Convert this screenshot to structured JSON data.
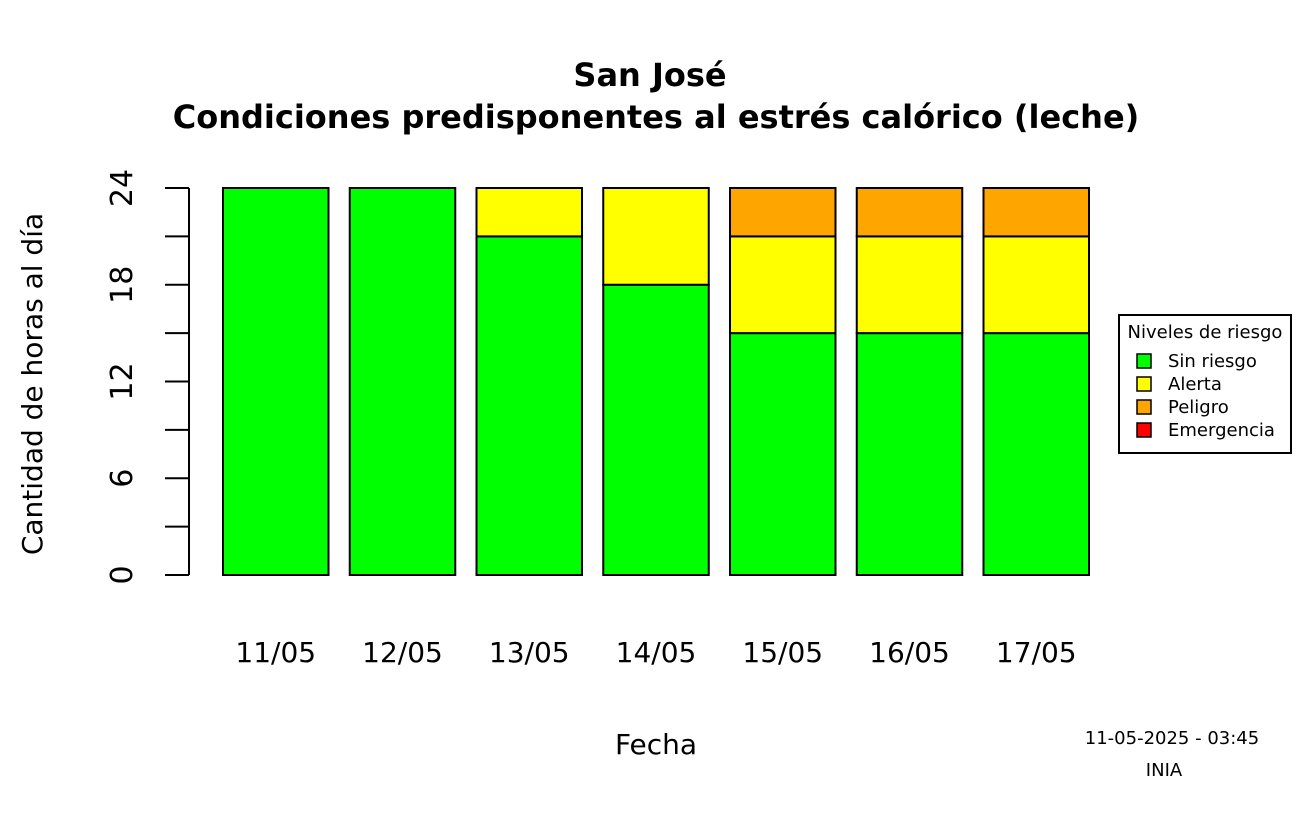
{
  "chart_data": {
    "type": "bar",
    "stacked": true,
    "title": "San José",
    "subtitle": "Condiciones predisponentes al estrés calórico (leche)",
    "xlabel": "Fecha",
    "ylabel": "Cantidad de horas al día",
    "ylim": [
      0,
      24
    ],
    "yticks": [
      0,
      3,
      6,
      9,
      12,
      15,
      18,
      21,
      24
    ],
    "ytick_labels": [
      "0",
      "",
      "6",
      "",
      "12",
      "",
      "18",
      "",
      "24"
    ],
    "categories": [
      "11/05",
      "12/05",
      "13/05",
      "14/05",
      "15/05",
      "16/05",
      "17/05"
    ],
    "series": [
      {
        "name": "Sin riesgo",
        "color": "#00ff00",
        "values": [
          24,
          24,
          21,
          18,
          15,
          15,
          15
        ]
      },
      {
        "name": "Alerta",
        "color": "#ffff00",
        "values": [
          0,
          0,
          3,
          6,
          6,
          6,
          6
        ]
      },
      {
        "name": "Peligro",
        "color": "#ffa500",
        "values": [
          0,
          0,
          0,
          0,
          3,
          3,
          3
        ]
      },
      {
        "name": "Emergencia",
        "color": "#ff0000",
        "values": [
          0,
          0,
          0,
          0,
          0,
          0,
          0
        ]
      }
    ],
    "legend": {
      "title": "Niveles de riesgo",
      "position": "right"
    },
    "grid": false
  },
  "footer": {
    "timestamp": "11-05-2025 - 03:45",
    "source": "INIA"
  }
}
